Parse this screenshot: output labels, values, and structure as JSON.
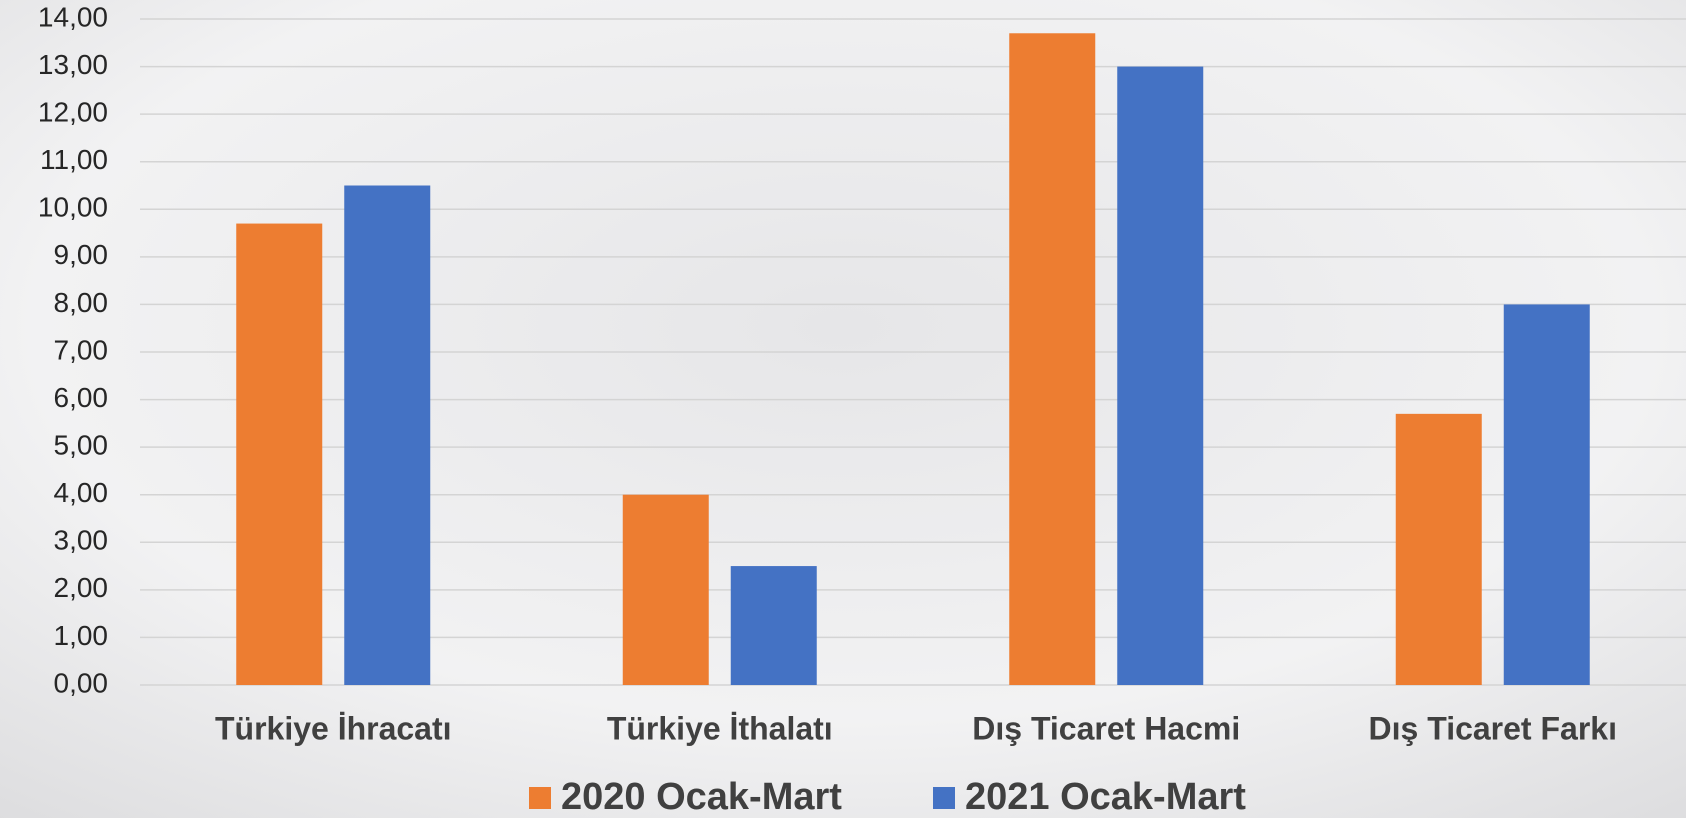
{
  "chart_data": {
    "type": "bar",
    "categories": [
      "Türkiye İhracatı",
      "Türkiye İthalatı",
      "Dış Ticaret Hacmi",
      "Dış Ticaret Farkı"
    ],
    "series": [
      {
        "name": "2020 Ocak-Mart",
        "color": "#ed7d31",
        "values": [
          9.7,
          4.0,
          13.7,
          5.7
        ]
      },
      {
        "name": "2021 Ocak-Mart",
        "color": "#4472c4",
        "values": [
          10.5,
          2.5,
          13.0,
          8.0
        ]
      }
    ],
    "ylim": [
      0,
      14
    ],
    "yticks": [
      {
        "value": 0,
        "label": "0,00"
      },
      {
        "value": 1,
        "label": "1,00"
      },
      {
        "value": 2,
        "label": "2,00"
      },
      {
        "value": 3,
        "label": "3,00"
      },
      {
        "value": 4,
        "label": "4,00"
      },
      {
        "value": 5,
        "label": "5,00"
      },
      {
        "value": 6,
        "label": "6,00"
      },
      {
        "value": 7,
        "label": "7,00"
      },
      {
        "value": 8,
        "label": "8,00"
      },
      {
        "value": 9,
        "label": "9,00"
      },
      {
        "value": 10,
        "label": "10,00"
      },
      {
        "value": 11,
        "label": "11,00"
      },
      {
        "value": 12,
        "label": "12,00"
      },
      {
        "value": 13,
        "label": "13,00"
      },
      {
        "value": 14,
        "label": "14,00"
      }
    ],
    "grid": true,
    "legend": "bottom"
  }
}
